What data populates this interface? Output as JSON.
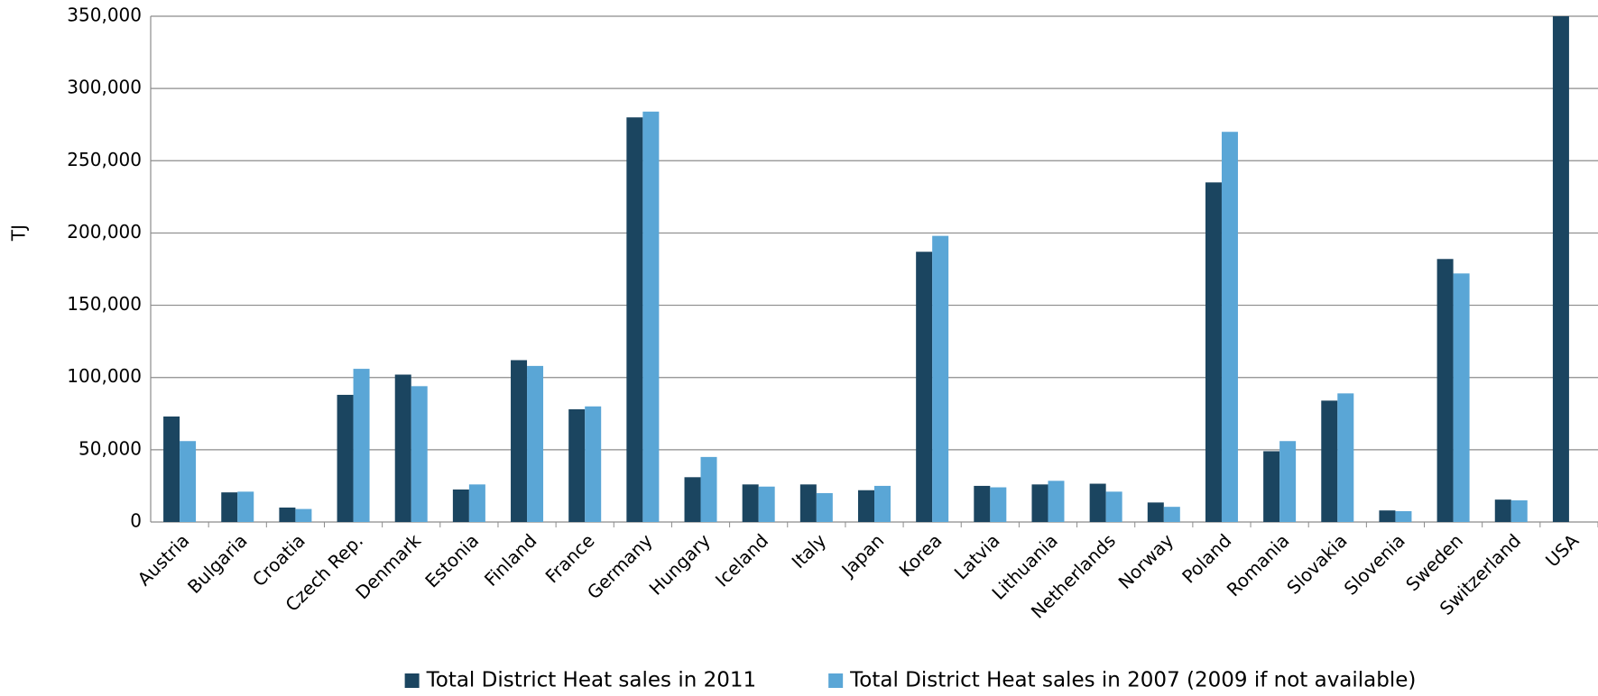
{
  "chart_data": {
    "type": "bar",
    "y_label": "TJ",
    "categories": [
      "Austria",
      "Bulgaria",
      "Croatia",
      "Czech Rep.",
      "Denmark",
      "Estonia",
      "Finland",
      "France",
      "Germany",
      "Hungary",
      "Iceland",
      "Italy",
      "Japan",
      "Korea",
      "Latvia",
      "Lithuania",
      "Netherlands",
      "Norway",
      "Poland",
      "Romania",
      "Slovakia",
      "Slovenia",
      "Sweden",
      "Switzerland",
      "USA"
    ],
    "series": [
      {
        "name": "Total District Heat sales in 2011",
        "color": "#1b4560",
        "values": [
          73000,
          20500,
          10000,
          88000,
          102000,
          22500,
          112000,
          78000,
          280000,
          31000,
          26000,
          26000,
          22000,
          187000,
          25000,
          26000,
          26500,
          13500,
          235000,
          49000,
          84000,
          8000,
          182000,
          15500,
          350000
        ]
      },
      {
        "name": "Total District Heat sales in 2007 (2009 if not available)",
        "color": "#5aa6d6",
        "values": [
          56000,
          21000,
          9000,
          106000,
          94000,
          26000,
          108000,
          80000,
          284000,
          45000,
          24500,
          20000,
          25000,
          198000,
          24000,
          28500,
          21000,
          10500,
          270000,
          56000,
          89000,
          7500,
          172000,
          15000,
          null
        ]
      }
    ],
    "ylim": [
      0,
      350000
    ],
    "yticks": [
      0,
      {
        "value": 50000,
        "label": "50,000"
      },
      {
        "value": 100000,
        "label": "100,000"
      },
      {
        "value": 150000,
        "label": "150,000"
      },
      {
        "value": 200000,
        "label": "200,000"
      },
      {
        "value": 250000,
        "label": "250,000"
      },
      {
        "value": 300000,
        "label": "300,000"
      },
      {
        "value": 350000,
        "label": "350,000"
      }
    ],
    "grid": true
  }
}
